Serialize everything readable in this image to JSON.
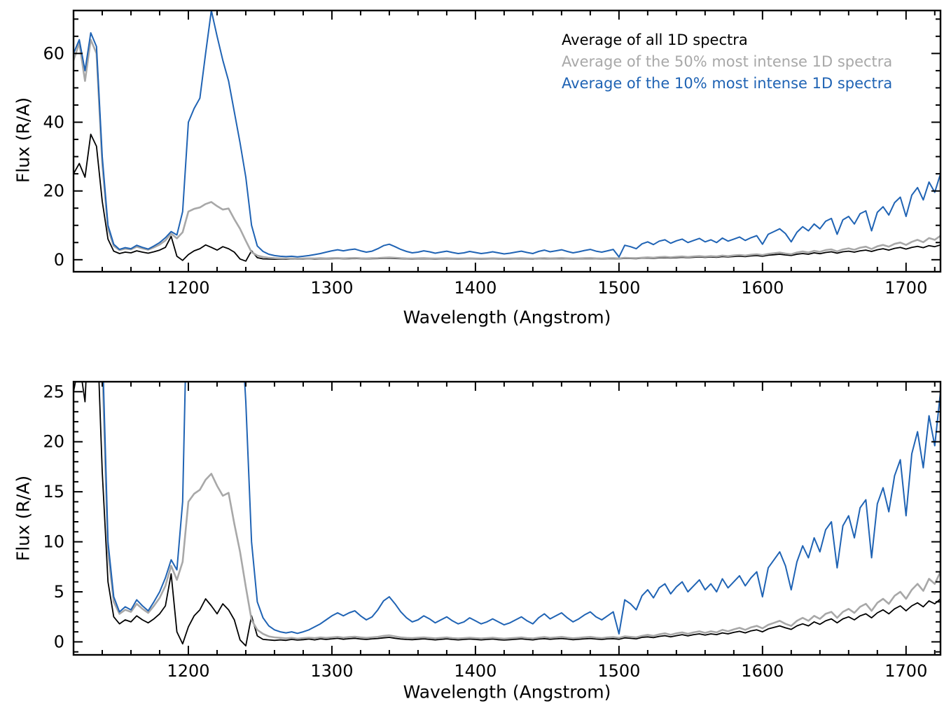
{
  "chart_data": {
    "type": "line",
    "title": "",
    "xlabel": "Wavelength (Angstrom)",
    "ylabel": "Flux (R/A)",
    "xlim": [
      1120,
      1724
    ],
    "xticks": [
      1200,
      1300,
      1400,
      1500,
      1600,
      1700
    ],
    "x_minor": 20,
    "x_start": 1120,
    "x_step": 4,
    "grid": false,
    "legend_position": "top-right-inside",
    "panels": [
      {
        "name": "full-scale",
        "ylabel": "Flux (R/A)",
        "xlabel": "Wavelength (Angstrom)",
        "ylim": [
          -3.5,
          72.5
        ],
        "yticks": [
          0,
          20,
          40,
          60
        ],
        "y_minor": 5
      },
      {
        "name": "zoomed",
        "ylabel": "Flux (R/A)",
        "xlabel": "Wavelength (Angstrom)",
        "ylim": [
          -1.3,
          26
        ],
        "yticks": [
          0,
          5,
          10,
          15,
          20,
          25
        ],
        "y_minor": 1
      }
    ],
    "series": [
      {
        "name": "Average of all 1D spectra",
        "color": "#000000",
        "values": [
          25,
          28,
          24,
          36.5,
          33,
          17,
          6,
          2.5,
          1.8,
          2.2,
          2.0,
          2.6,
          2.2,
          1.9,
          2.3,
          2.8,
          3.6,
          6.8,
          1.0,
          -0.2,
          1.5,
          2.6,
          3.2,
          4.3,
          3.6,
          2.8,
          3.8,
          3.2,
          2.2,
          0.2,
          -0.4,
          2.6,
          0.6,
          0.25,
          0.2,
          0.15,
          0.2,
          0.15,
          0.25,
          0.18,
          0.22,
          0.28,
          0.2,
          0.3,
          0.24,
          0.3,
          0.35,
          0.26,
          0.32,
          0.36,
          0.28,
          0.24,
          0.3,
          0.34,
          0.4,
          0.45,
          0.36,
          0.28,
          0.24,
          0.22,
          0.26,
          0.3,
          0.25,
          0.2,
          0.25,
          0.3,
          0.24,
          0.2,
          0.24,
          0.28,
          0.24,
          0.2,
          0.24,
          0.28,
          0.22,
          0.18,
          0.22,
          0.26,
          0.3,
          0.24,
          0.2,
          0.28,
          0.32,
          0.26,
          0.3,
          0.34,
          0.28,
          0.22,
          0.26,
          0.3,
          0.34,
          0.28,
          0.24,
          0.3,
          0.32,
          0.26,
          0.4,
          0.35,
          0.3,
          0.45,
          0.5,
          0.42,
          0.55,
          0.62,
          0.5,
          0.62,
          0.72,
          0.6,
          0.72,
          0.8,
          0.68,
          0.8,
          0.72,
          0.9,
          0.8,
          0.95,
          1.05,
          0.9,
          1.1,
          1.2,
          1.0,
          1.3,
          1.45,
          1.6,
          1.4,
          1.25,
          1.6,
          1.8,
          1.6,
          2.0,
          1.75,
          2.1,
          2.3,
          1.9,
          2.3,
          2.5,
          2.2,
          2.6,
          2.8,
          2.4,
          2.9,
          3.2,
          2.8,
          3.3,
          3.6,
          3.1,
          3.6,
          3.9,
          3.5,
          4.1,
          3.8,
          4.3
        ]
      },
      {
        "name": "Average of the 50% most intense 1D spectra",
        "color": "#a8a8a8",
        "values": [
          58,
          63,
          52,
          64,
          60,
          28,
          9,
          4,
          2.8,
          3.2,
          3.0,
          3.8,
          3.3,
          2.9,
          3.6,
          4.4,
          5.6,
          7.6,
          6.2,
          8.0,
          14.0,
          14.8,
          15.2,
          16.2,
          16.8,
          15.6,
          14.6,
          14.9,
          11.8,
          9.0,
          5.5,
          2.2,
          1.2,
          0.8,
          0.55,
          0.45,
          0.4,
          0.35,
          0.4,
          0.32,
          0.38,
          0.42,
          0.38,
          0.45,
          0.4,
          0.45,
          0.5,
          0.42,
          0.48,
          0.52,
          0.44,
          0.4,
          0.45,
          0.5,
          0.6,
          0.65,
          0.55,
          0.45,
          0.4,
          0.38,
          0.42,
          0.45,
          0.4,
          0.35,
          0.4,
          0.44,
          0.38,
          0.34,
          0.38,
          0.42,
          0.38,
          0.34,
          0.38,
          0.42,
          0.36,
          0.32,
          0.36,
          0.4,
          0.44,
          0.38,
          0.34,
          0.42,
          0.48,
          0.4,
          0.44,
          0.5,
          0.42,
          0.36,
          0.4,
          0.46,
          0.5,
          0.42,
          0.38,
          0.44,
          0.48,
          0.4,
          0.55,
          0.5,
          0.45,
          0.6,
          0.7,
          0.6,
          0.75,
          0.85,
          0.7,
          0.85,
          0.95,
          0.8,
          0.95,
          1.05,
          0.9,
          1.05,
          0.95,
          1.2,
          1.05,
          1.25,
          1.4,
          1.2,
          1.45,
          1.6,
          1.35,
          1.7,
          1.9,
          2.1,
          1.8,
          1.6,
          2.1,
          2.4,
          2.1,
          2.6,
          2.3,
          2.8,
          3.0,
          2.4,
          3.0,
          3.3,
          2.9,
          3.5,
          3.8,
          3.1,
          3.9,
          4.3,
          3.8,
          4.6,
          5.0,
          4.3,
          5.2,
          5.8,
          5.1,
          6.3,
          5.8,
          7.0
        ]
      },
      {
        "name": "Average of the 10% most intense 1D spectra",
        "color": "#1f63b4",
        "values": [
          60,
          64,
          55,
          66,
          62,
          30,
          10,
          4.5,
          3.0,
          3.5,
          3.2,
          4.2,
          3.6,
          3.1,
          4.0,
          5.0,
          6.4,
          8.2,
          7.2,
          14,
          40,
          44,
          47,
          60,
          72.5,
          65,
          58,
          52,
          43,
          34,
          24,
          10,
          4,
          2.4,
          1.6,
          1.2,
          1.0,
          0.9,
          1.0,
          0.85,
          1.0,
          1.2,
          1.5,
          1.8,
          2.2,
          2.6,
          2.9,
          2.6,
          2.9,
          3.1,
          2.6,
          2.2,
          2.5,
          3.2,
          4.1,
          4.5,
          3.8,
          3.0,
          2.4,
          2.0,
          2.2,
          2.6,
          2.3,
          1.9,
          2.2,
          2.5,
          2.1,
          1.8,
          2.0,
          2.4,
          2.1,
          1.8,
          2.0,
          2.3,
          2.0,
          1.7,
          1.9,
          2.2,
          2.5,
          2.1,
          1.8,
          2.4,
          2.8,
          2.3,
          2.6,
          2.9,
          2.4,
          2.0,
          2.3,
          2.7,
          3.0,
          2.5,
          2.2,
          2.6,
          3.0,
          0.8,
          4.2,
          3.8,
          3.2,
          4.6,
          5.2,
          4.4,
          5.4,
          5.8,
          4.8,
          5.5,
          6.0,
          5.0,
          5.6,
          6.2,
          5.2,
          5.8,
          5.0,
          6.3,
          5.4,
          6.0,
          6.6,
          5.6,
          6.4,
          7.0,
          4.5,
          7.4,
          8.2,
          9.0,
          7.6,
          5.2,
          8.0,
          9.6,
          8.4,
          10.4,
          9.0,
          11.2,
          12.0,
          7.4,
          11.6,
          12.6,
          10.4,
          13.4,
          14.2,
          8.4,
          13.8,
          15.4,
          13.0,
          16.6,
          18.2,
          12.6,
          18.8,
          21.0,
          17.4,
          22.6,
          19.6,
          25.0
        ]
      }
    ]
  }
}
